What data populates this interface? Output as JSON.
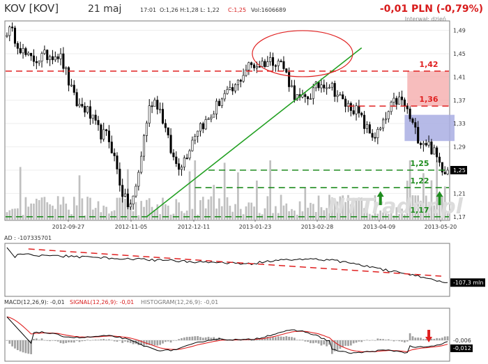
{
  "header": {
    "ticker": "KOV [KOV]",
    "date": "21 maj",
    "time": "17:01",
    "ohlc": "O:1,26 H:1,28 L: 1,22",
    "close": "C:1,25",
    "volume": "Vol:1606689",
    "change": "-0,01 PLN (-0,79%)",
    "interval": "Interwał: dzień"
  },
  "watermark": "NTTrader.pl",
  "colors": {
    "price": "#000000",
    "volume": "#c0c0c0",
    "resistance": "#e02020",
    "support": "#1e8c1e",
    "trend": "#22a022",
    "zone_red": "#f4a7a7",
    "zone_blue": "#a9aee3",
    "macd": "#000000",
    "signal": "#e02020",
    "histogram": "#a0a0a0",
    "current_tag": "#000000"
  },
  "chart_data": [
    {
      "type": "candlestick",
      "x_tick_labels": [
        "2012-09-27",
        "2012-11-05",
        "2012-12-11",
        "2013-01-23",
        "2013-02-28",
        "2013-04-09",
        "2013-05-20"
      ],
      "y_tick_labels": [
        "1,49",
        "1,45",
        "1,41",
        "1,37",
        "1,33",
        "1,29",
        "1,25",
        "1,21",
        "1,17"
      ],
      "ylim": [
        1.165,
        1.505
      ],
      "current_price_label": "1,25",
      "key_values": [
        1.49,
        1.44,
        1.45,
        1.36,
        1.31,
        1.19,
        1.37,
        1.26,
        1.33,
        1.38,
        1.43,
        1.44,
        1.37,
        1.4,
        1.36,
        1.31,
        1.37,
        1.3,
        1.25
      ],
      "levels": [
        {
          "label": "1,42",
          "value": 1.42,
          "kind": "resistance"
        },
        {
          "label": "1,36",
          "value": 1.36,
          "kind": "resistance"
        },
        {
          "label": "1,25",
          "value": 1.25,
          "kind": "support"
        },
        {
          "label": "1,22",
          "value": 1.22,
          "kind": "support"
        },
        {
          "label": "1,17",
          "value": 1.17,
          "kind": "support"
        }
      ],
      "trendline": {
        "from": 1.17,
        "to": 1.46
      },
      "annotations": [
        "ellipse around the top",
        "red zone 1,36-1,42",
        "blue zone 1,30-1,35",
        "green arrows up at 1,22 support"
      ],
      "legend": "none"
    },
    {
      "type": "line",
      "title": "AD : -107335701",
      "series": [
        {
          "name": "AD",
          "last_value_label": "-107,3 mln"
        }
      ],
      "annotations": [
        "red dashed descending trendline"
      ]
    },
    {
      "type": "line",
      "title_parts": {
        "macd": "MACD(12,26,9): -0,01",
        "signal": "SIGNAL(12,26,9): -0,01",
        "histogram": "HISTOGRAM(12,26,9): -0,01"
      },
      "series": [
        {
          "name": "MACD",
          "last_value_label": "-0,006"
        },
        {
          "name": "SIGNAL",
          "last_value_label": "-0,012"
        },
        {
          "name": "HISTOGRAM"
        }
      ],
      "annotations": [
        "red arrow down at end"
      ]
    }
  ]
}
